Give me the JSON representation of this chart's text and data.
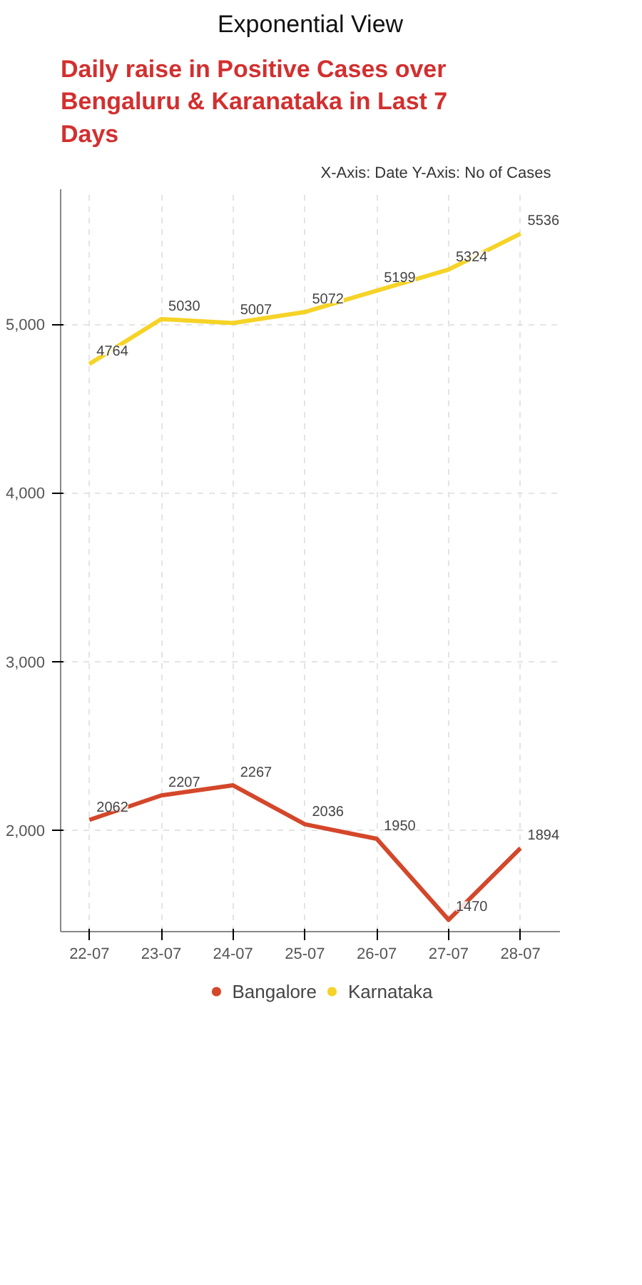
{
  "chart_data": {
    "type": "line",
    "title": "Daily raise in Positive Cases over Bengaluru & Karanataka in Last 7 Days",
    "subtitle": "Exponential View",
    "annotations": [
      "X-Axis: Date   Y-Axis: No of Cases"
    ],
    "categories": [
      "22-07",
      "23-07",
      "24-07",
      "25-07",
      "26-07",
      "27-07",
      "28-07"
    ],
    "series": [
      {
        "name": "Bangalore",
        "color": "#d4472a",
        "values": [
          2062,
          2207,
          2267,
          2036,
          1950,
          1470,
          1894
        ]
      },
      {
        "name": "Karnataka",
        "color": "#f5d327",
        "values": [
          4764,
          5030,
          5007,
          5072,
          5199,
          5324,
          5536
        ]
      }
    ],
    "ylim": [
      1400,
      5800
    ],
    "yticks": [
      {
        "value": 2000,
        "label": "2,000"
      },
      {
        "value": 3000,
        "label": "3,000"
      },
      {
        "value": 4000,
        "label": "4,000"
      },
      {
        "value": 5000,
        "label": "5,000"
      }
    ],
    "grid": true,
    "legend": "bottom",
    "data_labels": true,
    "marker": "none",
    "line_style": "solid"
  }
}
